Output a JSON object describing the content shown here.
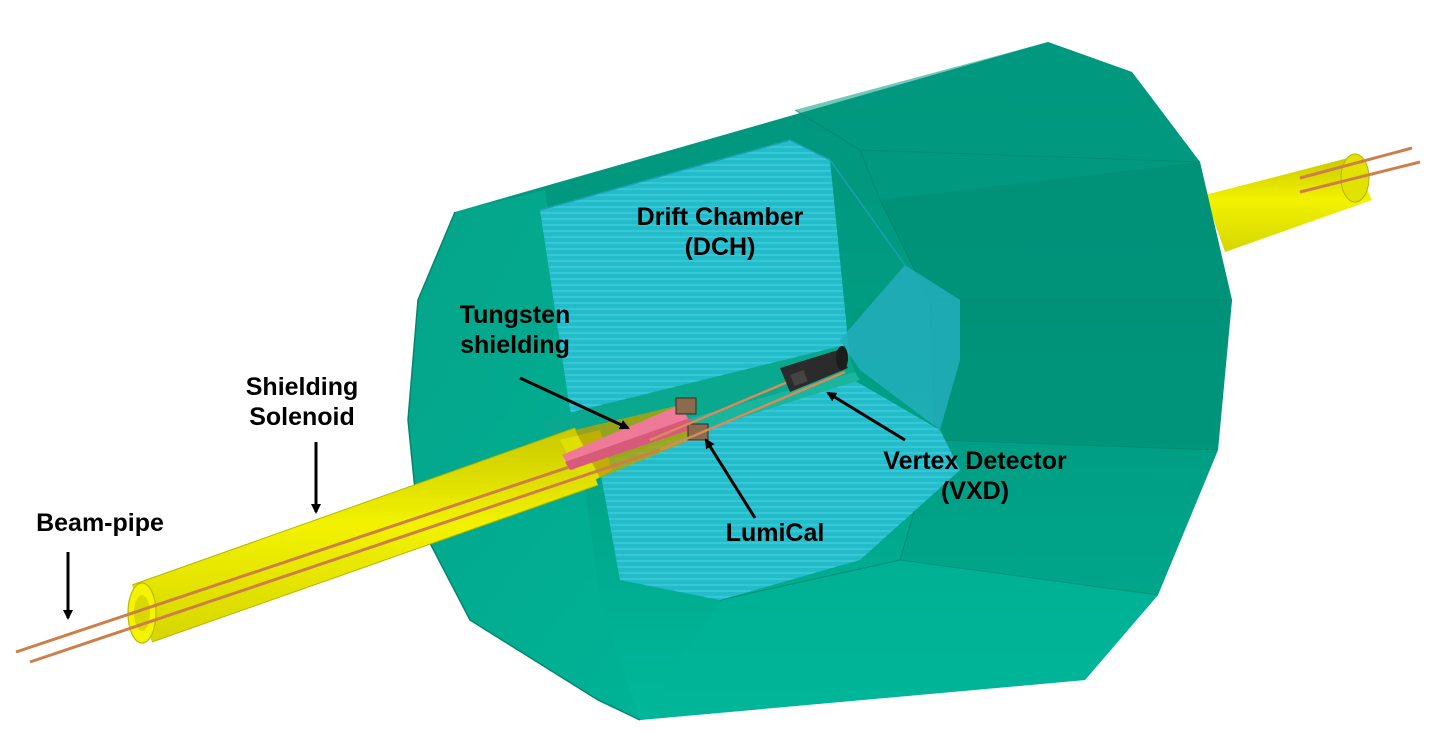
{
  "labels": {
    "drift_chamber": [
      "Drift Chamber",
      "(DCH)"
    ],
    "tungsten": [
      "Tungsten",
      "shielding"
    ],
    "solenoid": [
      "Shielding",
      "Solenoid"
    ],
    "beampipe": [
      "Beam-pipe"
    ],
    "lumical": [
      "LumiCal"
    ],
    "vertex": [
      "Vertex Detector",
      "(VXD)"
    ]
  },
  "colors": {
    "detector_body": "#009b80",
    "detector_body_light": "#00b89a",
    "detector_body_dark": "#007f69",
    "dch_interior": "#18b8c8",
    "dch_interior_light": "#3cc9d6",
    "solenoid": "#ecec00",
    "solenoid_shade": "#c4c400",
    "beampipe": "#cd7f4a",
    "tungsten": "#e86a8a",
    "lumical": "#8a6b4e",
    "vxd": "#2a2a2a",
    "arrow": "#000000"
  }
}
